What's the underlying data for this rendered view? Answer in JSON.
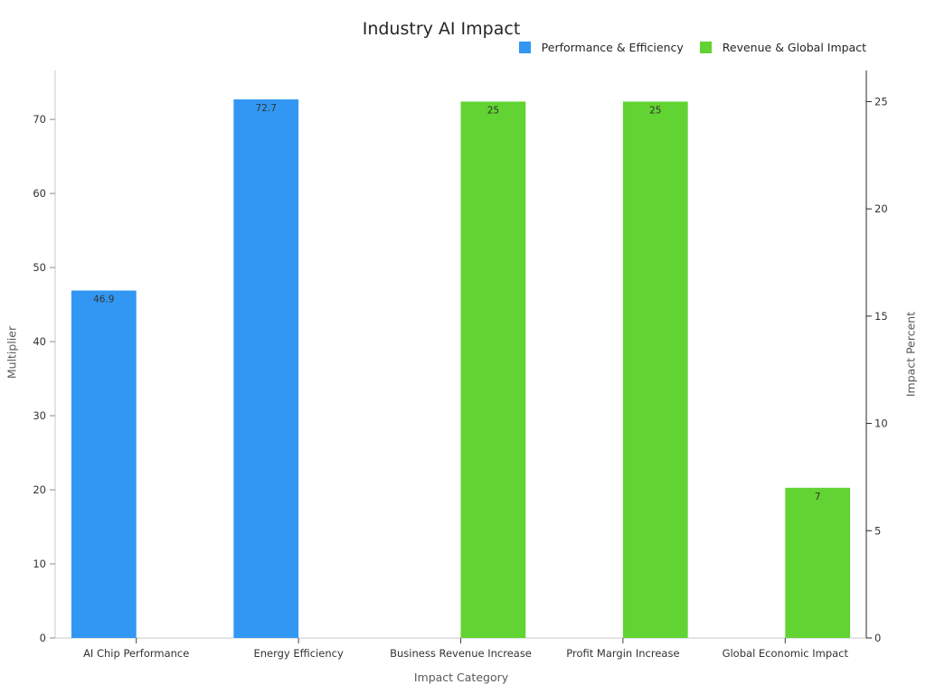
{
  "chart_data": {
    "type": "bar",
    "title": "Industry AI Impact",
    "xlabel": "Impact Category",
    "ylabel_left": "Multiplier",
    "ylabel_right": "Impact Percent",
    "categories": [
      "AI Chip Performance",
      "Energy Efficiency",
      "Business Revenue Increase",
      "Profit Margin Increase",
      "Global Economic Impact"
    ],
    "series": [
      {
        "name": "Performance & Efficiency",
        "color": "#3297f3",
        "axis": "left",
        "values": [
          46.9,
          72.7,
          null,
          null,
          null
        ],
        "labels": [
          "46.9",
          "72.7",
          "",
          "",
          ""
        ]
      },
      {
        "name": "Revenue & Global Impact",
        "color": "#61d332",
        "axis": "right",
        "values": [
          null,
          null,
          25,
          25,
          7
        ],
        "labels": [
          "",
          "",
          "25",
          "25",
          "7"
        ]
      }
    ],
    "axes": {
      "left": {
        "min": 0,
        "max": 76.6,
        "ticks": [
          0,
          10,
          20,
          30,
          40,
          50,
          60,
          70
        ]
      },
      "right": {
        "min": 0,
        "max": 26.45,
        "ticks": [
          0,
          5,
          10,
          15,
          20,
          25
        ]
      }
    },
    "legend_position": "top-right",
    "grid": false,
    "style": {
      "left_spine_color": "#c9c9c9",
      "bottom_spine_color": "#c9c9c9",
      "right_spine_color": "#262626",
      "left_tick_color": "#8c8c8c",
      "bottom_tick_color": "#444444",
      "right_tick_color": "#262626",
      "tick_label_color": "#333333",
      "bar_label_color": "#333333"
    }
  }
}
